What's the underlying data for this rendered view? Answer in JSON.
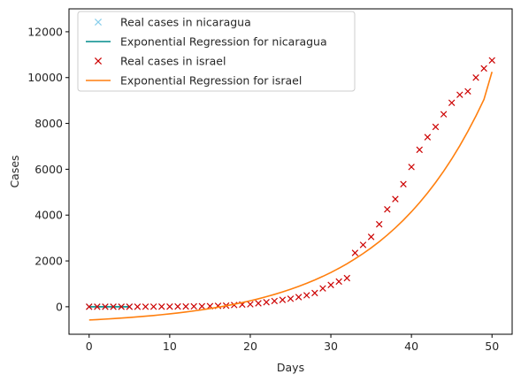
{
  "chart_data": {
    "type": "line",
    "title": "",
    "xlabel": "Days",
    "ylabel": "Cases",
    "xlim": [
      -2.5,
      52.5
    ],
    "ylim": [
      -1200,
      13000
    ],
    "xticks": [
      0,
      10,
      20,
      30,
      40,
      50
    ],
    "yticks": [
      0,
      2000,
      4000,
      6000,
      8000,
      10000,
      12000
    ],
    "grid": false,
    "legend_position": "top-left",
    "series": [
      {
        "name": "Real cases in nicaragua",
        "kind": "markers",
        "marker": "x",
        "color": "#87ceeb",
        "x": [
          0,
          1,
          2,
          3,
          4,
          5
        ],
        "y": [
          0,
          0,
          0,
          0,
          0,
          0
        ]
      },
      {
        "name": "Exponential Regression for nicaragua",
        "kind": "line",
        "color": "#008b8b",
        "x": [
          0,
          1,
          2,
          3,
          4,
          5
        ],
        "y": [
          0,
          0,
          0,
          0,
          0,
          0
        ]
      },
      {
        "name": "Real cases in israel",
        "kind": "markers",
        "marker": "x",
        "color": "#cc0000",
        "x": [
          0,
          1,
          2,
          3,
          4,
          5,
          6,
          7,
          8,
          9,
          10,
          11,
          12,
          13,
          14,
          15,
          16,
          17,
          18,
          19,
          20,
          21,
          22,
          23,
          24,
          25,
          26,
          27,
          28,
          29,
          30,
          31,
          32,
          33,
          34,
          35,
          36,
          37,
          38,
          39,
          40,
          41,
          42,
          43,
          44,
          45,
          46,
          47,
          48,
          49,
          50
        ],
        "y": [
          1,
          1,
          1,
          1,
          1,
          2,
          2,
          3,
          4,
          5,
          7,
          10,
          12,
          17,
          21,
          25,
          39,
          50,
          75,
          97,
          109,
          150,
          200,
          250,
          300,
          350,
          420,
          500,
          600,
          800,
          950,
          1100,
          1250,
          2350,
          2700,
          3050,
          3600,
          4250,
          4700,
          5350,
          6100,
          6850,
          7400,
          7850,
          8400,
          8900,
          9250,
          9400,
          10000,
          10400,
          10750
        ]
      },
      {
        "name": "Exponential Regression for israel",
        "kind": "line",
        "color": "#ff7f0e",
        "x": [
          0,
          1,
          2,
          3,
          4,
          5,
          6,
          7,
          8,
          9,
          10,
          11,
          12,
          13,
          14,
          15,
          16,
          17,
          18,
          19,
          20,
          21,
          22,
          23,
          24,
          25,
          26,
          27,
          28,
          29,
          30,
          31,
          32,
          33,
          34,
          35,
          36,
          37,
          38,
          39,
          40,
          41,
          42,
          43,
          44,
          45,
          46,
          47,
          48,
          49,
          50
        ],
        "y": [
          -578,
          -559,
          -539,
          -517,
          -494,
          -469,
          -442,
          -413,
          -381,
          -347,
          -311,
          -271,
          -229,
          -183,
          -133,
          -79,
          -21,
          42,
          110,
          183,
          262,
          347,
          439,
          539,
          646,
          762,
          887,
          1022,
          1168,
          1326,
          1495,
          1679,
          1877,
          2091,
          2321,
          2570,
          2839,
          3129,
          3442,
          3780,
          4145,
          4539,
          4963,
          5422,
          5916,
          6450,
          7027,
          7649,
          8320,
          9045,
          10250
        ]
      }
    ]
  }
}
